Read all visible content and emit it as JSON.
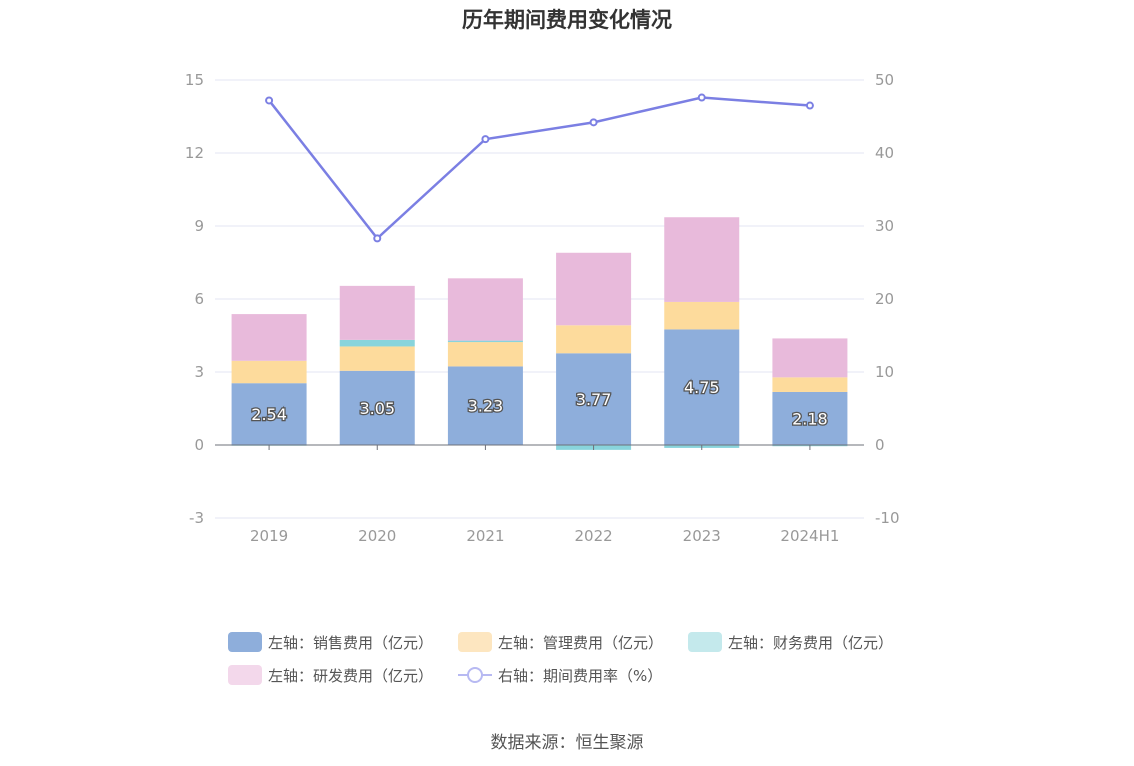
{
  "chart_data": {
    "type": "bar",
    "title": "历年期间费用变化情况",
    "categories": [
      "2019",
      "2020",
      "2021",
      "2022",
      "2023",
      "2024H1"
    ],
    "stacked": true,
    "left_axis": {
      "ylim": [
        -3,
        15
      ],
      "ticks": [
        "-3",
        "0",
        "3",
        "6",
        "9",
        "12",
        "15"
      ]
    },
    "right_axis": {
      "ylim": [
        -10,
        50
      ],
      "ticks": [
        "-10",
        "0",
        "10",
        "20",
        "30",
        "40",
        "50"
      ]
    },
    "grid": true,
    "legend_position": "bottom",
    "series": [
      {
        "name": "左轴：销售费用（亿元）",
        "axis": "left",
        "type": "bar",
        "color": "#8eaedb",
        "values": [
          2.54,
          3.05,
          3.23,
          3.77,
          4.75,
          2.18
        ],
        "labels": [
          "2.54",
          "3.05",
          "3.23",
          "3.77",
          "4.75",
          "2.18"
        ]
      },
      {
        "name": "左轴：管理费用（亿元）",
        "axis": "left",
        "type": "bar",
        "color": "#fddb9c",
        "values": [
          0.92,
          1.0,
          1.0,
          1.15,
          1.13,
          0.6
        ]
      },
      {
        "name": "左轴：财务费用（亿元）",
        "axis": "left",
        "type": "bar",
        "color": "#88d4dc",
        "values": [
          -0.03,
          0.27,
          0.06,
          -0.2,
          -0.12,
          -0.05
        ]
      },
      {
        "name": "左轴：研发费用（亿元）",
        "axis": "left",
        "type": "bar",
        "color": "#e8badb",
        "values": [
          1.92,
          2.22,
          2.56,
          2.98,
          3.48,
          1.6
        ]
      },
      {
        "name": "右轴：期间费用率（%）",
        "axis": "right",
        "type": "line",
        "color": "#7b7fe3",
        "values": [
          47.2,
          28.3,
          41.9,
          44.2,
          47.6,
          46.5
        ]
      }
    ]
  },
  "legend_items": [
    {
      "label": "左轴：销售费用（亿元）",
      "color": "#8eaedb",
      "kind": "bar"
    },
    {
      "label": "左轴：管理费用（亿元）",
      "color": "#fde6c0",
      "kind": "bar"
    },
    {
      "label": "左轴：财务费用（亿元）",
      "color": "#c4e9ec",
      "kind": "bar"
    },
    {
      "label": "左轴：研发费用（亿元）",
      "color": "#f3d8eb",
      "kind": "bar"
    },
    {
      "label": "右轴：期间费用率（%）",
      "color": "#b7b9f2",
      "kind": "line"
    }
  ],
  "source": "数据来源：恒生聚源"
}
